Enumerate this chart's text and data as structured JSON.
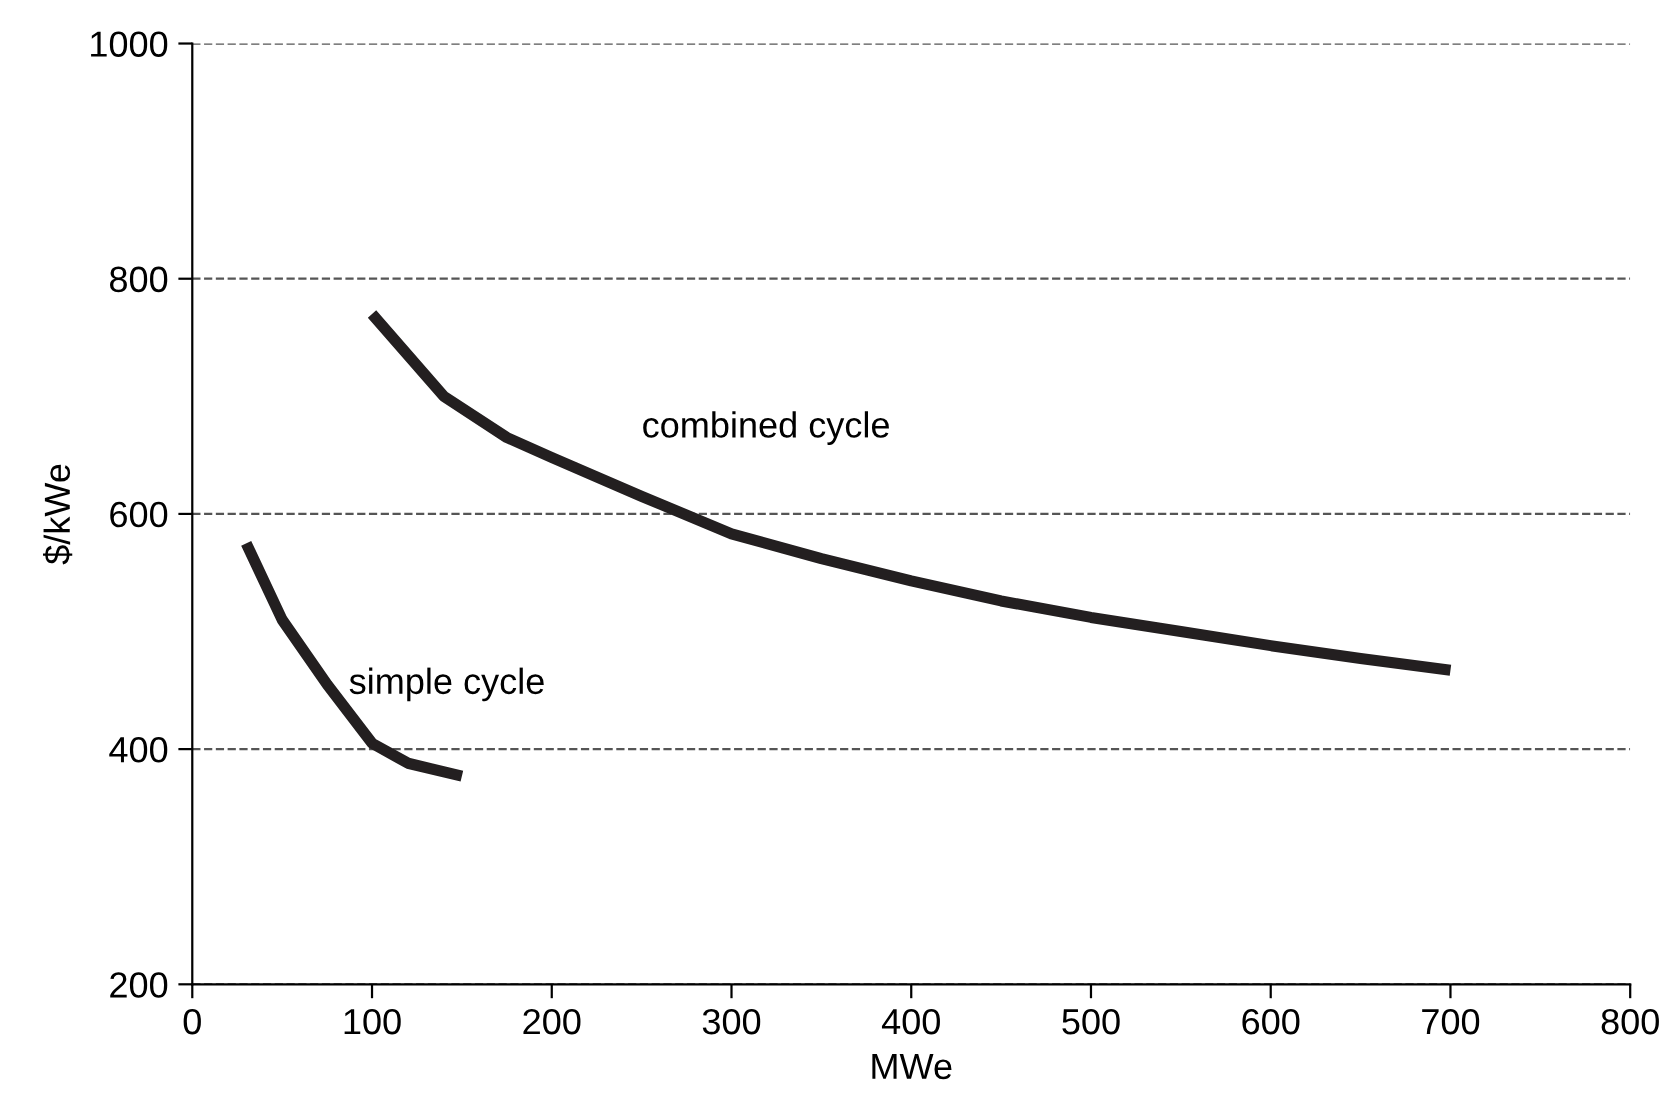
{
  "chart_data": {
    "type": "line",
    "xlabel": "MWe",
    "ylabel": "$/kWe",
    "xlim": [
      0,
      800
    ],
    "xticks": [
      0,
      100,
      200,
      300,
      400,
      500,
      600,
      700,
      800
    ],
    "ylim": [
      200,
      1000
    ],
    "yticks": [
      200,
      400,
      600,
      800,
      1000
    ],
    "grid": "y",
    "line_style": "solid",
    "marker": "none",
    "legend": false,
    "series": [
      {
        "name": "simple cycle",
        "color": "#231f20",
        "x": [
          30,
          50,
          75,
          100,
          120,
          150
        ],
        "values": [
          575,
          510,
          455,
          405,
          388,
          377
        ]
      },
      {
        "name": "combined cycle",
        "color": "#231f20",
        "x": [
          100,
          140,
          175,
          200,
          250,
          300,
          350,
          400,
          450,
          500,
          550,
          600,
          650,
          700
        ],
        "values": [
          770,
          700,
          665,
          648,
          615,
          583,
          562,
          543,
          526,
          512,
          500,
          488,
          477,
          467
        ]
      }
    ]
  }
}
